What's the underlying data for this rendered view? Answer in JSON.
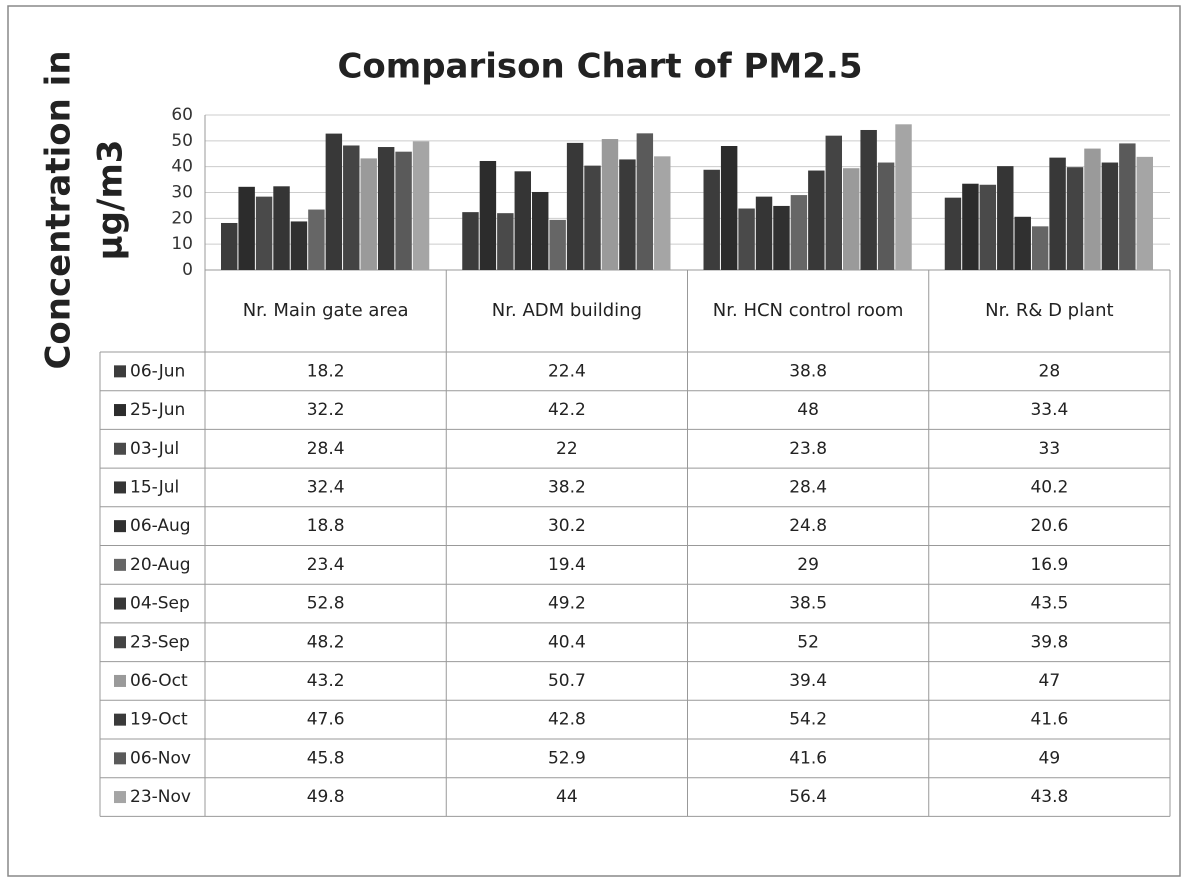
{
  "chart_data": {
    "type": "bar",
    "title": "Comparison Chart of PM2.5",
    "ylabel": [
      "Concentration in",
      "µg/m3"
    ],
    "categories": [
      "Nr. Main gate area",
      "Nr. ADM building",
      "Nr. HCN control room",
      "Nr. R& D plant"
    ],
    "ylim": [
      0,
      60
    ],
    "yticks": [
      0,
      10,
      20,
      30,
      40,
      50,
      60
    ],
    "grid": true,
    "series": [
      {
        "name": "06-Jun",
        "color": "#3c3c3c",
        "values": [
          18.2,
          22.4,
          38.8,
          28
        ]
      },
      {
        "name": "25-Jun",
        "color": "#2c2c2c",
        "values": [
          32.2,
          42.2,
          48,
          33.4
        ]
      },
      {
        "name": "03-Jul",
        "color": "#4a4a4a",
        "values": [
          28.4,
          22,
          23.8,
          33
        ]
      },
      {
        "name": "15-Jul",
        "color": "#353535",
        "values": [
          32.4,
          38.2,
          28.4,
          40.2
        ]
      },
      {
        "name": "06-Aug",
        "color": "#303030",
        "values": [
          18.8,
          30.2,
          24.8,
          20.6
        ]
      },
      {
        "name": "20-Aug",
        "color": "#666666",
        "values": [
          23.4,
          19.4,
          29,
          16.9
        ]
      },
      {
        "name": "04-Sep",
        "color": "#383838",
        "values": [
          52.8,
          49.2,
          38.5,
          43.5
        ]
      },
      {
        "name": "23-Sep",
        "color": "#444444",
        "values": [
          48.2,
          40.4,
          52,
          39.8
        ]
      },
      {
        "name": "06-Oct",
        "color": "#9a9a9a",
        "values": [
          43.2,
          50.7,
          39.4,
          47
        ]
      },
      {
        "name": "19-Oct",
        "color": "#3a3a3a",
        "values": [
          47.6,
          42.8,
          54.2,
          41.6
        ]
      },
      {
        "name": "06-Nov",
        "color": "#5a5a5a",
        "values": [
          45.8,
          52.9,
          41.6,
          49
        ]
      },
      {
        "name": "23-Nov",
        "color": "#a5a5a5",
        "values": [
          49.8,
          44,
          56.4,
          43.8
        ]
      }
    ]
  }
}
